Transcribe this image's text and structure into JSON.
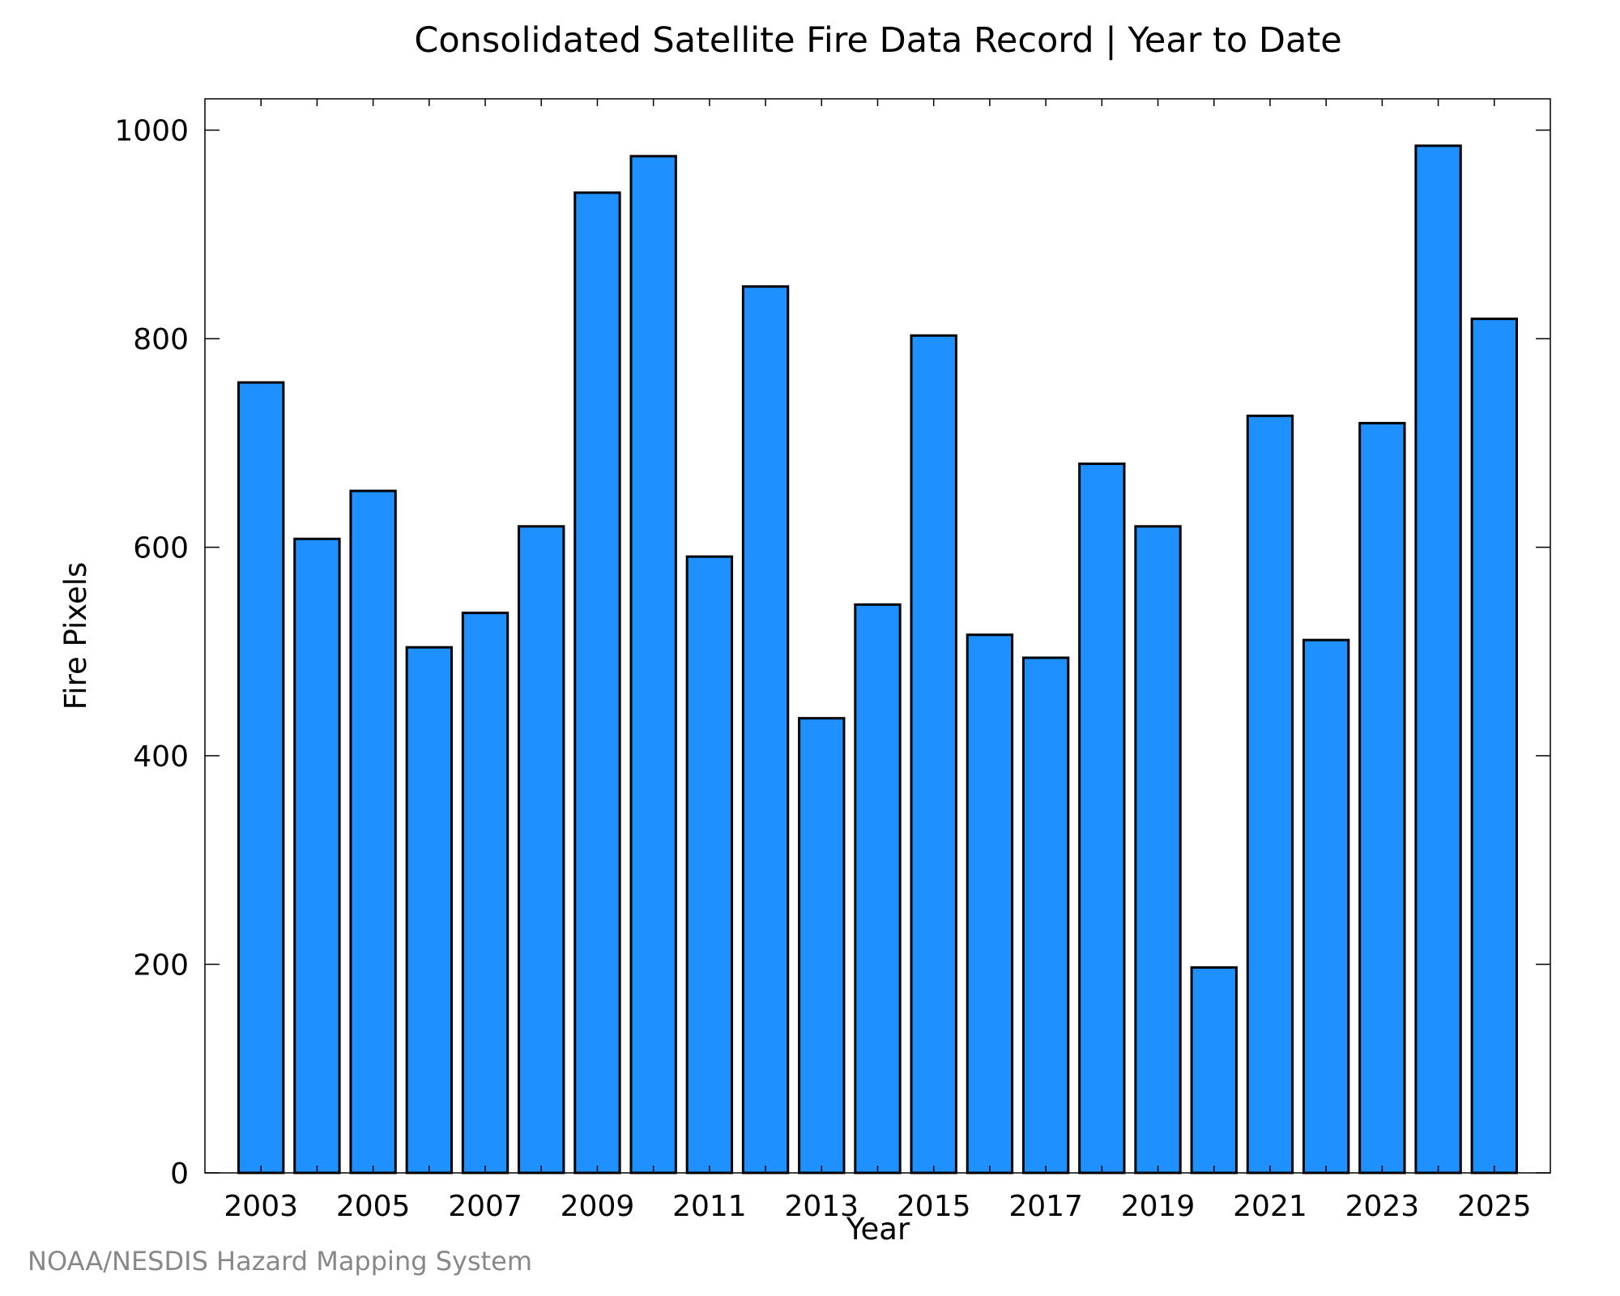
{
  "chart_data": {
    "type": "bar",
    "title": "Consolidated Satellite Fire Data Record | Year to Date",
    "xlabel": "Year",
    "ylabel": "Fire Pixels",
    "ylim": [
      0,
      1030
    ],
    "xlim": [
      2002,
      2026
    ],
    "yticks": [
      0,
      200,
      400,
      600,
      800,
      1000
    ],
    "xticks": [
      2003,
      2005,
      2007,
      2009,
      2011,
      2013,
      2015,
      2017,
      2019,
      2021,
      2023,
      2025
    ],
    "bar_color": "#1e90ff",
    "edge_color": "#000000",
    "grid": false,
    "categories": [
      2003,
      2004,
      2005,
      2006,
      2007,
      2008,
      2009,
      2010,
      2011,
      2012,
      2013,
      2014,
      2015,
      2016,
      2017,
      2018,
      2019,
      2020,
      2021,
      2022,
      2023,
      2024,
      2025
    ],
    "values": [
      758,
      608,
      654,
      504,
      537,
      620,
      940,
      975,
      591,
      850,
      436,
      545,
      803,
      516,
      494,
      680,
      620,
      197,
      726,
      511,
      719,
      985,
      819
    ]
  },
  "footer": {
    "credit": "NOAA/NESDIS Hazard Mapping System"
  }
}
